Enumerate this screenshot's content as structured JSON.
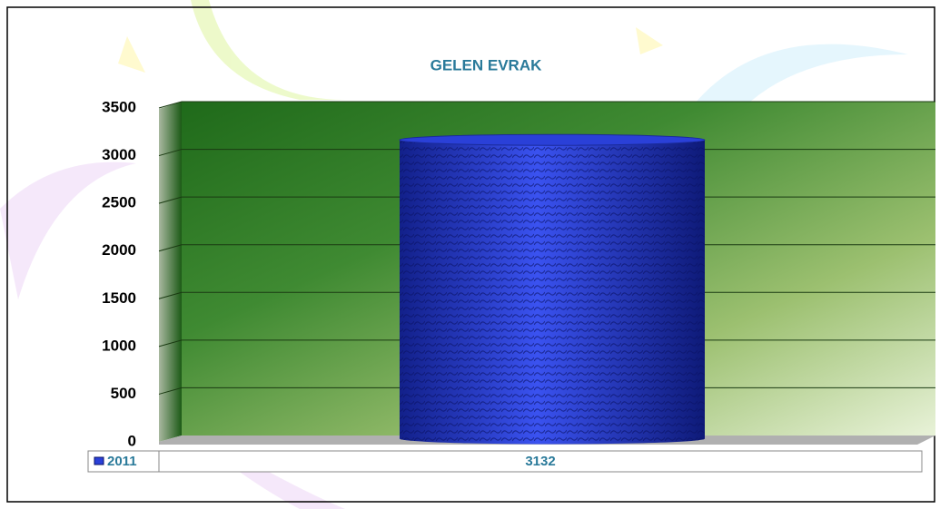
{
  "chart_data": {
    "type": "bar",
    "title": "GELEN EVRAK",
    "categories": [
      null
    ],
    "series": [
      {
        "name": "2011",
        "color": "#2a40d8",
        "values": [
          3132
        ]
      }
    ],
    "ylim": [
      0,
      3500
    ],
    "yticks": [
      0,
      500,
      1000,
      1500,
      2000,
      2500,
      3000,
      3500
    ],
    "grid": true
  }
}
